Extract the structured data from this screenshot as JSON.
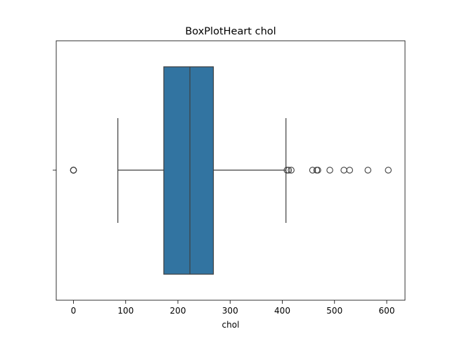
{
  "chart_data": {
    "type": "box",
    "title": "BoxPlotHeart chol",
    "xlabel": "chol",
    "ylabel": "",
    "xlim": [
      -33,
      635
    ],
    "x_ticks": [
      0,
      100,
      200,
      300,
      400,
      500,
      600
    ],
    "grid": false,
    "legend": "none",
    "box": {
      "whisker_low": 85,
      "q1": 173,
      "median": 223,
      "q3": 268,
      "whisker_high": 407
    },
    "outliers": [
      0,
      0,
      0,
      0,
      0,
      409,
      412,
      417,
      458,
      466,
      468,
      491,
      518,
      529,
      564,
      603
    ],
    "colors": {
      "box_fill": "#3274a1",
      "lines": "#3f3f3f",
      "axes": "#000000"
    }
  }
}
